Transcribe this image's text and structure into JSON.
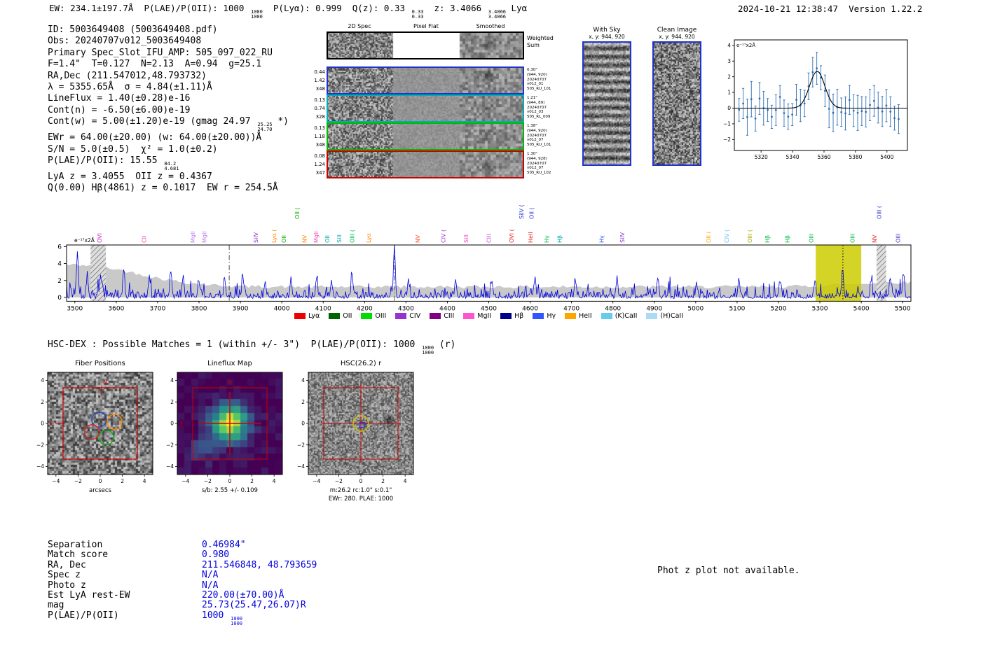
{
  "header": {
    "summary": [
      {
        "t": "EW: 234.1±197.7Å  P(LAE)/P(OII): 1000 "
      },
      {
        "s": [
          "1000",
          "1000"
        ]
      },
      {
        "t": "  P(Lyα): 0.999  Q(z): 0.33 "
      },
      {
        "s": [
          "0.33",
          "0.33"
        ]
      },
      {
        "t": "  z: 3.4066 "
      },
      {
        "s": [
          "3.4066",
          "3.4066"
        ]
      },
      {
        "t": " Lyα"
      }
    ],
    "timestamp": "2024-10-21 12:38:47",
    "version": "Version 1.22.2"
  },
  "info": {
    "lines": [
      [
        {
          "t": "ID: 5003649408 (5003649408.pdf)"
        }
      ],
      [
        {
          "t": "Obs: 20240707v012_5003649408"
        }
      ],
      [
        {
          "t": "Primary Spec_Slot_IFU_AMP: 505_097_022_RU"
        }
      ],
      [
        {
          "t": "F=1.4\"  T=0.127  N=2.13  A=0.94  g=25.1"
        }
      ],
      [
        {
          "t": "RA,Dec (211.547012,48.793732)"
        }
      ],
      [
        {
          "t": "λ = 5355.65Å  σ = 4.84(±1.11)Å"
        }
      ],
      [
        {
          "t": "LineFlux = 1.40(±0.28)e-16"
        }
      ],
      [
        {
          "t": "Cont(n) = -6.50(±6.00)e-19"
        }
      ],
      [
        {
          "t": "Cont(w) = 5.00(±1.20)e-19 (gmag 24.97 "
        },
        {
          "s": [
            "25.25",
            "24.70"
          ]
        },
        {
          "t": " *)"
        }
      ],
      [
        {
          "t": "EWr = 64.00(±20.00) (w: 64.00(±20.00))Å"
        }
      ],
      [
        {
          "t": "S/N = 5.0(±0.5)  χ² = 1.0(±0.2)"
        }
      ],
      [
        {
          "t": "P(LAE)/P(OII): 15.55 "
        },
        {
          "s": [
            "84.2",
            "4.681"
          ]
        }
      ],
      [
        {
          "t": "LyA z = 3.4055  OII z = 0.4367"
        }
      ],
      [
        {
          "t": "Q(0.00) Hβ(4861) z = 0.1017  EW r = 254.5Å"
        }
      ]
    ]
  },
  "spec2d": {
    "col_headers": [
      "2D Spec",
      "Pixel Flat",
      "Smoothed"
    ],
    "rows": [
      {
        "border": "#000000",
        "left": [],
        "right": [
          "Weighted",
          "Sum"
        ]
      },
      {
        "border": "#2233cc",
        "left": [
          "0.44",
          "1.42",
          "348"
        ],
        "right": [
          "0.30\"",
          "(944, 920)",
          "20240707",
          "v012_01",
          "505_RU_101"
        ]
      },
      {
        "border": "#00b0b0",
        "left": [
          "0.13",
          "0.74",
          "328"
        ],
        "right": [
          "1.21\"",
          "(944, 89)",
          "20240707",
          "v012_03",
          "505_RL_009"
        ]
      },
      {
        "border": "#00bb00",
        "left": [
          "0.13",
          "1.18",
          "348"
        ],
        "right": [
          "1.38\"",
          "(944, 920)",
          "20240707",
          "v012_07",
          "505_RU_101"
        ]
      },
      {
        "border": "#cc0000",
        "left": [
          "0.08",
          "1.24",
          "347"
        ],
        "right": [
          "1.30\"",
          "(944, 928)",
          "20240707",
          "v012_07",
          "505_RU_102"
        ]
      }
    ]
  },
  "with_sky": {
    "title": "With Sky",
    "coords": "x, y: 944, 920"
  },
  "clean_image": {
    "title": "Clean Image",
    "coords": "x, y: 944, 920"
  },
  "hsc_header": [
    {
      "t": "HSC-DEX : Possible Matches = 1 (within +/- 3\")  P(LAE)/P(OII): 1000 "
    },
    {
      "s": [
        "1000",
        "1000"
      ]
    },
    {
      "t": " (r)"
    }
  ],
  "match_table": {
    "rows": [
      {
        "label": "Separation",
        "value": [
          {
            "t": "0.46984\""
          }
        ]
      },
      {
        "label": "Match score",
        "value": [
          {
            "t": "0.980"
          }
        ]
      },
      {
        "label": "RA, Dec",
        "value": [
          {
            "t": "211.546848, 48.793659"
          }
        ]
      },
      {
        "label": "Spec z",
        "value": [
          {
            "t": "N/A"
          }
        ]
      },
      {
        "label": "Photo z",
        "value": [
          {
            "t": "N/A"
          }
        ]
      },
      {
        "label": "Est LyA rest-EW",
        "value": [
          {
            "t": "220.00(±70.00)Å"
          }
        ]
      },
      {
        "label": "mag",
        "value": [
          {
            "t": "25.73(25.47,26.07)R"
          }
        ]
      },
      {
        "label": "P(LAE)/P(OII)",
        "value": [
          {
            "t": "1000 "
          },
          {
            "s": [
              "1000",
              "1000"
            ]
          }
        ]
      }
    ]
  },
  "notes": {
    "photz": "Phot z plot not available."
  },
  "chart_data": [
    {
      "id": "linefit",
      "type": "line",
      "unit_label": "e⁻¹⁷x2Å",
      "xlim": [
        5303,
        5413
      ],
      "ylim": [
        -2.7,
        4.35
      ],
      "xticks": [
        5320,
        5340,
        5360,
        5380,
        5400
      ],
      "yticks": [
        -2,
        -1,
        0,
        1,
        2,
        3,
        4
      ],
      "gaussian": {
        "center": 5355.65,
        "sigma": 4.84,
        "amplitude": 2.35,
        "baseline": 0
      },
      "points_color": "#2e6db4",
      "curve_color": "#000000"
    },
    {
      "id": "spectrum",
      "type": "line",
      "unit_label": "e⁻¹⁷x2Å",
      "xlim": [
        3480,
        5520
      ],
      "ylim": [
        -0.45,
        6.2
      ],
      "xticks": [
        3500,
        3600,
        3700,
        3800,
        3900,
        4000,
        4100,
        4200,
        4300,
        4400,
        4500,
        4600,
        4700,
        4800,
        4900,
        5000,
        5100,
        5200,
        5300,
        5400,
        5500
      ],
      "yticks": [
        0,
        2,
        4,
        6
      ],
      "main_line_wavelength": 5355.65,
      "highlight_band": [
        5290,
        5400
      ],
      "hatch_bands": [
        [
          3538,
          3575
        ],
        [
          5437,
          5460
        ]
      ],
      "dashdot_lines": [
        3873,
        4272
      ],
      "noise_env": {
        "base": 1.25,
        "left_amp": 2.6,
        "left_sigma": 150,
        "right_amp": 0.55,
        "right_sigma": 130
      },
      "line_color": "#0000dd",
      "noise_color": "#c9c9c9",
      "peaks": [
        {
          "x": 3506,
          "h": 5.2
        },
        {
          "x": 3530,
          "h": 2.3
        },
        {
          "x": 3562,
          "h": 2.8
        },
        {
          "x": 3618,
          "h": 3.3
        },
        {
          "x": 3680,
          "h": 2.6
        },
        {
          "x": 3732,
          "h": 3.1
        },
        {
          "x": 3762,
          "h": 2.3
        },
        {
          "x": 3800,
          "h": 2.0
        },
        {
          "x": 3862,
          "h": 2.2
        },
        {
          "x": 3906,
          "h": 2.6
        },
        {
          "x": 3960,
          "h": 2.0
        },
        {
          "x": 4022,
          "h": 2.2
        },
        {
          "x": 4084,
          "h": 2.3
        },
        {
          "x": 4120,
          "h": 1.9
        },
        {
          "x": 4170,
          "h": 2.4
        },
        {
          "x": 4272,
          "h": 6.2
        },
        {
          "x": 4306,
          "h": 2.0
        },
        {
          "x": 4420,
          "h": 2.1
        },
        {
          "x": 4508,
          "h": 1.9
        },
        {
          "x": 4612,
          "h": 2.1
        },
        {
          "x": 4710,
          "h": 1.7
        },
        {
          "x": 4810,
          "h": 2.4
        },
        {
          "x": 4908,
          "h": 1.9
        },
        {
          "x": 5002,
          "h": 1.7
        },
        {
          "x": 5104,
          "h": 2.1
        },
        {
          "x": 5204,
          "h": 1.9
        },
        {
          "x": 5288,
          "h": 2.0
        },
        {
          "x": 5355,
          "h": 3.5
        },
        {
          "x": 5424,
          "h": 1.9
        },
        {
          "x": 5470,
          "h": 2.3
        },
        {
          "x": 5502,
          "h": 2.8
        }
      ],
      "labels": [
        {
          "wl": 3565,
          "text": "OVI",
          "color": "#cc22cc",
          "lvl": 0
        },
        {
          "wl": 3672,
          "text": "CII",
          "color": "#ee44bb",
          "lvl": 0
        },
        {
          "wl": 3790,
          "text": "MgII",
          "color": "#bb77ee",
          "lvl": 0
        },
        {
          "wl": 3818,
          "text": "MgII",
          "color": "#bb77ee",
          "lvl": 0
        },
        {
          "wl": 3942,
          "text": "SiIV",
          "color": "#8833cc",
          "lvl": 0
        },
        {
          "wl": 3986,
          "text": "Lyα (",
          "color": "#ff8800",
          "lvl": 0
        },
        {
          "wl": 4010,
          "text": "OII",
          "color": "#00aa00",
          "lvl": 0
        },
        {
          "wl": 4042,
          "text": "OII (",
          "color": "#00aa00",
          "lvl": 1
        },
        {
          "wl": 4060,
          "text": "NV",
          "color": "#ff8800",
          "lvl": 0
        },
        {
          "wl": 4088,
          "text": "MgII",
          "color": "#ee44bb",
          "lvl": 0
        },
        {
          "wl": 4115,
          "text": "OII",
          "color": "#00aaaa",
          "lvl": 0
        },
        {
          "wl": 4144,
          "text": "SiII",
          "color": "#00aaaa",
          "lvl": 0
        },
        {
          "wl": 4175,
          "text": "OIII (",
          "color": "#00bb55",
          "lvl": 0
        },
        {
          "wl": 4215,
          "text": "Lyα",
          "color": "#ff8800",
          "lvl": 0
        },
        {
          "wl": 4333,
          "text": "NV",
          "color": "#ff5522",
          "lvl": 0
        },
        {
          "wl": 4395,
          "text": "CIV (",
          "color": "#9932cc",
          "lvl": 0
        },
        {
          "wl": 4450,
          "text": "SiII",
          "color": "#ee44bb",
          "lvl": 0
        },
        {
          "wl": 4505,
          "text": "CIII",
          "color": "#cc44cc",
          "lvl": 0
        },
        {
          "wl": 4560,
          "text": "OVI (",
          "color": "#ee2222",
          "lvl": 0
        },
        {
          "wl": 4606,
          "text": "HeII",
          "color": "#ee2222",
          "lvl": 0
        },
        {
          "wl": 4584,
          "text": "SiIV (",
          "color": "#2233cc",
          "lvl": 1
        },
        {
          "wl": 4608,
          "text": "OII (",
          "color": "#2233cc",
          "lvl": 1
        },
        {
          "wl": 4645,
          "text": "Hγ",
          "color": "#00bb44",
          "lvl": 0
        },
        {
          "wl": 4676,
          "text": "Hβ",
          "color": "#00aaaa",
          "lvl": 0
        },
        {
          "wl": 4778,
          "text": "Hγ",
          "color": "#2255ee",
          "lvl": 0
        },
        {
          "wl": 4828,
          "text": "SiIV",
          "color": "#8833cc",
          "lvl": 0
        },
        {
          "wl": 5036,
          "text": "OII (",
          "color": "#ffaa00",
          "lvl": 0
        },
        {
          "wl": 5080,
          "text": "CIV (",
          "color": "#66bbee",
          "lvl": 0
        },
        {
          "wl": 5136,
          "text": "OIII (",
          "color": "#aaaa00",
          "lvl": 0
        },
        {
          "wl": 5178,
          "text": "Hβ",
          "color": "#00bb44",
          "lvl": 0
        },
        {
          "wl": 5226,
          "text": "Hβ",
          "color": "#00bb44",
          "lvl": 0
        },
        {
          "wl": 5284,
          "text": "OIII",
          "color": "#00bb44",
          "lvl": 0
        },
        {
          "wl": 5384,
          "text": "OIII",
          "color": "#00bb44",
          "lvl": 0
        },
        {
          "wl": 5437,
          "text": "NV",
          "color": "#ee2222",
          "lvl": 0
        },
        {
          "wl": 5448,
          "text": "OIII (",
          "color": "#2233cc",
          "lvl": 1
        },
        {
          "wl": 5494,
          "text": "OIII",
          "color": "#5533cc",
          "lvl": 0
        }
      ],
      "legend": [
        {
          "label": "Lyα",
          "color": "#ee0000"
        },
        {
          "label": "OII",
          "color": "#006400"
        },
        {
          "label": "OIII",
          "color": "#00dd00"
        },
        {
          "label": "CIV",
          "color": "#9932cc"
        },
        {
          "label": "CIII",
          "color": "#800080"
        },
        {
          "label": "MgII",
          "color": "#ff55cc"
        },
        {
          "label": "Hβ",
          "color": "#00008b"
        },
        {
          "label": "Hγ",
          "color": "#3355ff"
        },
        {
          "label": "HeII",
          "color": "#ffa500"
        },
        {
          "label": "(K)CaII",
          "color": "#66ccee"
        },
        {
          "label": "(H)CaII",
          "color": "#aaddf5"
        }
      ]
    },
    {
      "id": "fiber_positions",
      "type": "image",
      "title": "Fiber Positions",
      "xticks": [
        -4,
        -2,
        0,
        2,
        4
      ],
      "yticks": [
        -4,
        -2,
        0,
        2,
        4
      ],
      "xlabel": "arcsecs",
      "compass": {
        "n": "N",
        "e": "E"
      },
      "fov_color": "#cc0000",
      "fibers": [
        {
          "x": -0.1,
          "y": 0.35,
          "color": "#2244cc"
        },
        {
          "x": 1.3,
          "y": 0.15,
          "color": "#ff8800"
        },
        {
          "x": 0.55,
          "y": -1.3,
          "color": "#00aa00"
        },
        {
          "x": -0.75,
          "y": -0.8,
          "color": "#dd2222"
        }
      ]
    },
    {
      "id": "lineflux_map",
      "type": "heatmap",
      "title": "Lineflux Map",
      "xticks": [
        -4,
        -2,
        0,
        2,
        4
      ],
      "yticks": [
        -4,
        -2,
        0,
        2,
        4
      ],
      "xlabel": "s/b: 2.55 +/- 0.109",
      "compass": {
        "n": "N",
        "e": "E"
      },
      "crosshair_color": "#cc0000"
    },
    {
      "id": "hsc_r",
      "type": "image",
      "title": "HSC(26.2) r",
      "xticks": [
        -4,
        -2,
        0,
        2,
        4
      ],
      "yticks": [
        -4,
        -2,
        0,
        2,
        4
      ],
      "xlabel": "m:26.2 rc:1.0\" s:0.1\"",
      "xlabel2": "EWr: 280. PLAE: 1000",
      "crosshair_color": "#cc0000",
      "aperture_color": "#d4c400",
      "catalog_box_color": "#2233cc"
    }
  ]
}
